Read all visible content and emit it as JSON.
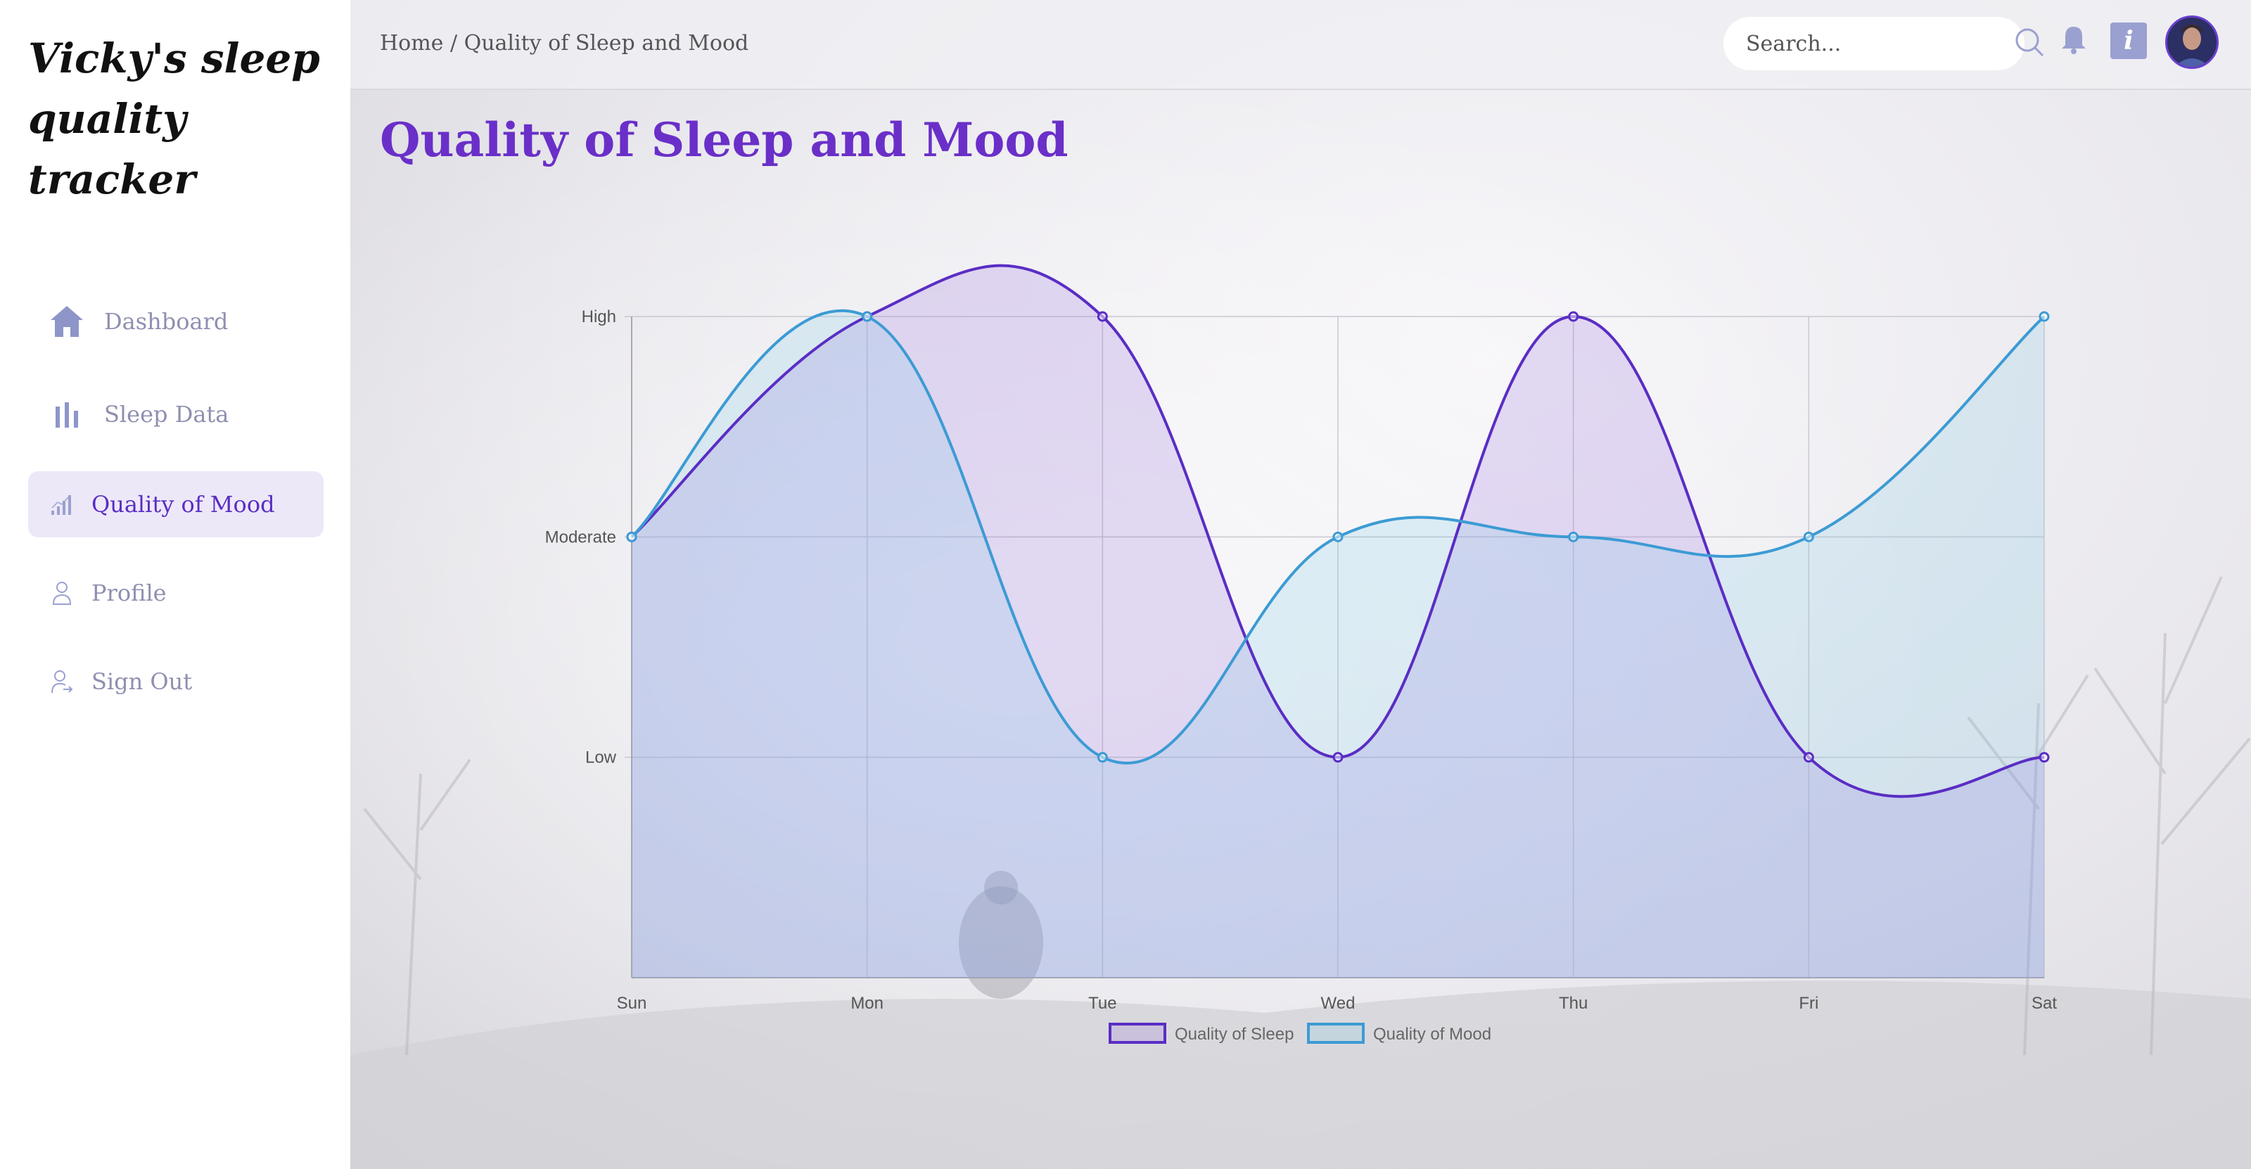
{
  "sidebar": {
    "brand": "Vicky's sleep quality tracker",
    "items": [
      {
        "label": "Dashboard",
        "icon": "home-icon"
      },
      {
        "label": "Sleep Data",
        "icon": "bar-chart-icon"
      },
      {
        "label": "Quality of Mood",
        "icon": "signal-chart-icon",
        "active": true
      },
      {
        "label": "Profile",
        "icon": "user-icon"
      },
      {
        "label": "Sign Out",
        "icon": "sign-out-icon"
      }
    ]
  },
  "header": {
    "breadcrumb": "Home / Quality of Sleep and Mood",
    "search_placeholder": "Search...",
    "info_label": "i"
  },
  "main": {
    "title": "Quality of Sleep and Mood"
  },
  "colors": {
    "sleep": "#5a2dc4",
    "mood": "#3c9bd4",
    "accent": "#6a2fc8"
  },
  "chart_data": {
    "type": "line",
    "categories": [
      "Sun",
      "Mon",
      "Tue",
      "Wed",
      "Thu",
      "Fri",
      "Sat"
    ],
    "y_ticks": [
      "Low",
      "Moderate",
      "High"
    ],
    "y_scale": {
      "Low": 1,
      "Moderate": 2,
      "High": 3
    },
    "ylim": [
      0,
      3
    ],
    "grid": true,
    "legend_position": "bottom",
    "series": [
      {
        "name": "Quality of Sleep",
        "values": [
          2,
          3,
          3,
          1,
          3,
          1,
          1
        ]
      },
      {
        "name": "Quality of Mood",
        "values": [
          2,
          3,
          1,
          2,
          2,
          2,
          3
        ]
      }
    ]
  }
}
